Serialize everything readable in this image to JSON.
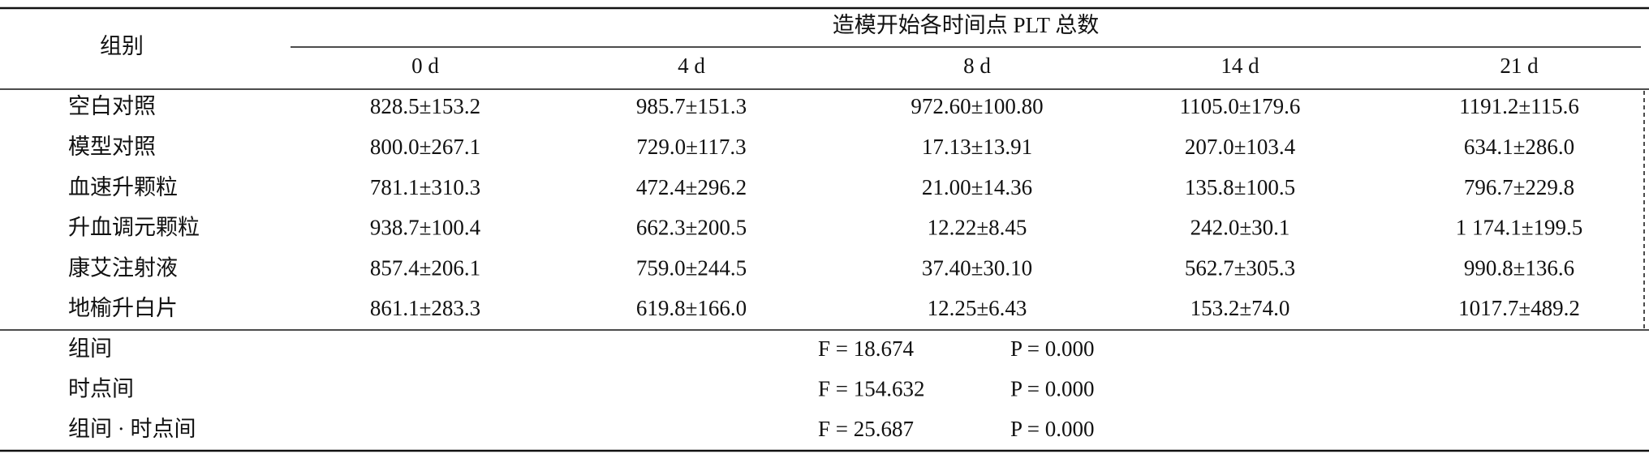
{
  "table": {
    "header": {
      "group_label": "组别",
      "span_label": "造模开始各时间点 PLT 总数",
      "columns": [
        "0 d",
        "4 d",
        "8 d",
        "14 d",
        "21 d"
      ]
    },
    "rows": [
      [
        "空白对照",
        "828.5±153.2",
        "985.7±151.3",
        "972.60±100.80",
        "1105.0±179.6",
        "1191.2±115.6"
      ],
      [
        "模型对照",
        "800.0±267.1",
        "729.0±117.3",
        "17.13±13.91",
        "207.0±103.4",
        "634.1±286.0"
      ],
      [
        "血速升颗粒",
        "781.1±310.3",
        "472.4±296.2",
        "21.00±14.36",
        "135.8±100.5",
        "796.7±229.8"
      ],
      [
        "升血调元颗粒",
        "938.7±100.4",
        "662.3±200.5",
        "12.22±8.45",
        "242.0±30.1",
        "1 174.1±199.5"
      ],
      [
        "康艾注射液",
        "857.4±206.1",
        "759.0±244.5",
        "37.40±30.10",
        "562.7±305.3",
        "990.8±136.6"
      ],
      [
        "地榆升白片",
        "861.1±283.3",
        "619.8±166.0",
        "12.25±6.43",
        "153.2±74.0",
        "1017.7±489.2"
      ]
    ],
    "stats": [
      {
        "label": "组间",
        "f": "F = 18.674",
        "p": "P = 0.000"
      },
      {
        "label": "时点间",
        "f": "F = 154.632",
        "p": "P = 0.000"
      },
      {
        "label": "组间 · 时点间",
        "f": "F = 25.687",
        "p": "P = 0.000"
      }
    ]
  }
}
